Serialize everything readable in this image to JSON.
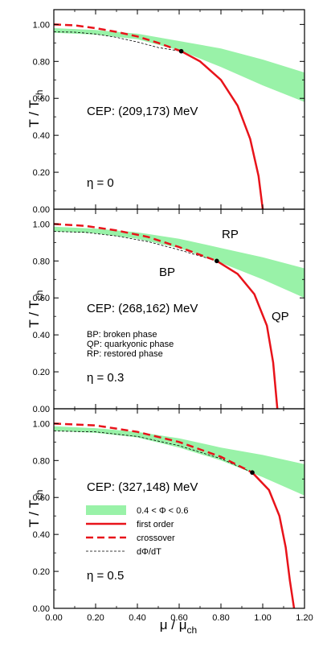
{
  "figure": {
    "y_axis_label": "T / T",
    "y_axis_label_sub": "ch",
    "x_axis_label": "μ / μ",
    "x_axis_label_sub": "ch",
    "x_tick_labels": [
      "0.00",
      "0.20",
      "0.40",
      "0.60",
      "0.80",
      "1.00",
      "1.20"
    ],
    "y_tick_labels": [
      "0.00",
      "0.20",
      "0.40",
      "0.60",
      "0.80",
      "1.00"
    ],
    "legend": {
      "band": "0.4 < Φ < 0.6",
      "first_order": "first order",
      "crossover": "crossover",
      "dphi": "dΦ/dT"
    },
    "colors": {
      "band": "#99f2a8",
      "first_order": "#e8131a",
      "crossover": "#e8131a",
      "dphi": "#000000",
      "cep": "#000000"
    }
  },
  "chart_data": [
    {
      "type": "line",
      "panel": "eta-0",
      "eta_label": "η = 0",
      "cep_label": "CEP: (209,173) MeV",
      "xlim": [
        0,
        1.2
      ],
      "ylim": [
        0,
        1.08
      ],
      "cep": [
        0.61,
        0.855
      ],
      "series": [
        {
          "name": "crossover",
          "x": [
            0,
            0.1,
            0.2,
            0.3,
            0.4,
            0.5,
            0.61
          ],
          "y": [
            1.0,
            0.995,
            0.98,
            0.96,
            0.935,
            0.9,
            0.855
          ]
        },
        {
          "name": "first order",
          "x": [
            0.61,
            0.7,
            0.8,
            0.88,
            0.94,
            0.98,
            1.0
          ],
          "y": [
            0.855,
            0.8,
            0.7,
            0.56,
            0.38,
            0.18,
            0.0
          ]
        },
        {
          "name": "dΦ/dT",
          "x": [
            0,
            0.1,
            0.2,
            0.3,
            0.4,
            0.5,
            0.61
          ],
          "y": [
            0.96,
            0.958,
            0.948,
            0.93,
            0.905,
            0.875,
            0.855
          ]
        },
        {
          "name": "0.4 < Φ < 0.6",
          "x": [
            0,
            0.2,
            0.4,
            0.6,
            0.8,
            1.0,
            1.2
          ],
          "y_upper": [
            0.98,
            0.97,
            0.95,
            0.91,
            0.87,
            0.81,
            0.74
          ],
          "y_lower": [
            0.955,
            0.945,
            0.92,
            0.86,
            0.77,
            0.67,
            0.58
          ]
        }
      ]
    },
    {
      "type": "line",
      "panel": "eta-0.3",
      "eta_label": "η = 0.3",
      "cep_label": "CEP: (268,162) MeV",
      "phase_labels": {
        "bp": "BP",
        "rp": "RP",
        "qp": "QP"
      },
      "phase_notes": [
        "BP: broken phase",
        "QP: quarkyonic phase",
        "RP: restored phase"
      ],
      "xlim": [
        0,
        1.2
      ],
      "ylim": [
        0,
        1.08
      ],
      "cep": [
        0.78,
        0.8
      ],
      "series": [
        {
          "name": "crossover",
          "x": [
            0,
            0.15,
            0.3,
            0.45,
            0.6,
            0.78
          ],
          "y": [
            1.0,
            0.99,
            0.965,
            0.93,
            0.875,
            0.8
          ]
        },
        {
          "name": "first order",
          "x": [
            0.78,
            0.88,
            0.96,
            1.02,
            1.05,
            1.07
          ],
          "y": [
            0.8,
            0.73,
            0.62,
            0.45,
            0.25,
            0.0
          ]
        },
        {
          "name": "dΦ/dT",
          "x": [
            0,
            0.15,
            0.3,
            0.45,
            0.6,
            0.78
          ],
          "y": [
            0.96,
            0.955,
            0.935,
            0.905,
            0.86,
            0.8
          ]
        },
        {
          "name": "0.4 < Φ < 0.6",
          "x": [
            0,
            0.2,
            0.4,
            0.6,
            0.8,
            1.0,
            1.2
          ],
          "y_upper": [
            0.985,
            0.975,
            0.955,
            0.92,
            0.87,
            0.82,
            0.76
          ],
          "y_lower": [
            0.96,
            0.95,
            0.92,
            0.87,
            0.79,
            0.7,
            0.6
          ]
        }
      ]
    },
    {
      "type": "line",
      "panel": "eta-0.5",
      "eta_label": "η = 0.5",
      "cep_label": "CEP: (327,148) MeV",
      "xlim": [
        0,
        1.2
      ],
      "ylim": [
        0,
        1.08
      ],
      "cep": [
        0.95,
        0.735
      ],
      "series": [
        {
          "name": "crossover",
          "x": [
            0,
            0.2,
            0.4,
            0.6,
            0.8,
            0.95
          ],
          "y": [
            1.0,
            0.99,
            0.955,
            0.9,
            0.82,
            0.735
          ]
        },
        {
          "name": "first order",
          "x": [
            0.95,
            1.03,
            1.08,
            1.11,
            1.13,
            1.15
          ],
          "y": [
            0.735,
            0.64,
            0.5,
            0.33,
            0.15,
            0.0
          ]
        },
        {
          "name": "dΦ/dT",
          "x": [
            0,
            0.2,
            0.4,
            0.6,
            0.8,
            0.95
          ],
          "y": [
            0.96,
            0.955,
            0.93,
            0.88,
            0.81,
            0.735
          ]
        },
        {
          "name": "0.4 < Φ < 0.6",
          "x": [
            0,
            0.2,
            0.4,
            0.6,
            0.8,
            1.0,
            1.2
          ],
          "y_upper": [
            0.985,
            0.975,
            0.955,
            0.92,
            0.87,
            0.83,
            0.78
          ],
          "y_lower": [
            0.96,
            0.95,
            0.925,
            0.87,
            0.8,
            0.71,
            0.61
          ]
        }
      ]
    }
  ]
}
